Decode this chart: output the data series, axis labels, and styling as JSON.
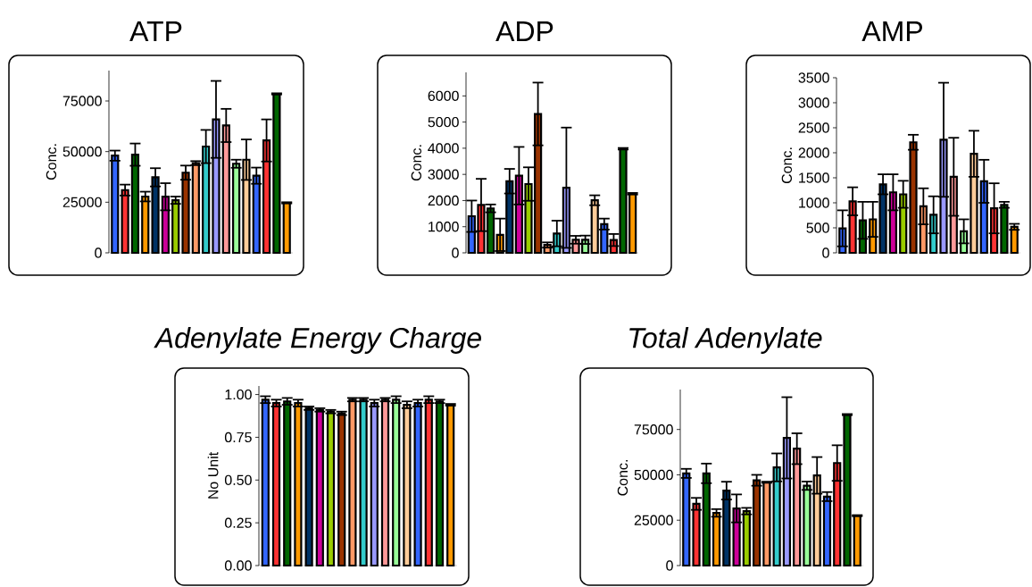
{
  "chart_data": [
    {
      "type": "bar",
      "title": "ATP",
      "ylabel": "Conc.",
      "tick_labels": "y",
      "categories": [
        null,
        null,
        null,
        null,
        null,
        null,
        null,
        null,
        null,
        null,
        null,
        null,
        null,
        null,
        null,
        null,
        null,
        null
      ],
      "colors": [
        "#3366ff",
        "#ff3333",
        "#006600",
        "#ff9900",
        "#003366",
        "#cc0099",
        "#99cc00",
        "#993300",
        "#ff9966",
        "#33cccc",
        "#9999ff",
        "#ff9999",
        "#99ff99",
        "#ffcc99",
        "#3366ff",
        "#ff3333",
        "#006600",
        "#ff9900"
      ],
      "values": [
        48000,
        31000,
        48500,
        27800,
        37300,
        27700,
        26000,
        39600,
        44300,
        52500,
        65900,
        62900,
        44000,
        46000,
        38100,
        55500,
        78500,
        24700
      ],
      "errors": [
        2500,
        2700,
        5500,
        2400,
        4500,
        6700,
        1800,
        3500,
        1000,
        8200,
        19000,
        8200,
        2000,
        10000,
        4000,
        10400,
        300,
        300
      ],
      "ylim": [
        0,
        90000
      ],
      "yticks": [
        0,
        25000,
        50000,
        75000
      ]
    },
    {
      "type": "bar",
      "title": "ADP",
      "ylabel": "Conc.",
      "tick_labels": "y",
      "categories": [
        null,
        null,
        null,
        null,
        null,
        null,
        null,
        null,
        null,
        null,
        null,
        null,
        null,
        null,
        null,
        null,
        null,
        null
      ],
      "colors": [
        "#3366ff",
        "#ff3333",
        "#006600",
        "#ff9900",
        "#003366",
        "#cc0099",
        "#99cc00",
        "#993300",
        "#ff9966",
        "#33cccc",
        "#9999ff",
        "#ff9999",
        "#99ff99",
        "#ffcc99",
        "#3366ff",
        "#ff3333",
        "#006600",
        "#ff9900"
      ],
      "values": [
        1400,
        1830,
        1700,
        690,
        2740,
        2950,
        2630,
        5310,
        300,
        740,
        2490,
        500,
        500,
        2010,
        1100,
        490,
        3980,
        2260
      ],
      "errors": [
        600,
        1000,
        150,
        620,
        470,
        1100,
        640,
        1200,
        100,
        490,
        2300,
        150,
        160,
        190,
        210,
        230,
        30,
        30
      ],
      "ylim": [
        0,
        6900
      ],
      "yticks": [
        0,
        1000,
        2000,
        3000,
        4000,
        5000,
        6000
      ]
    },
    {
      "type": "bar",
      "title": "AMP",
      "ylabel": "Conc.",
      "tick_labels": "y",
      "categories": [
        null,
        null,
        null,
        null,
        null,
        null,
        null,
        null,
        null,
        null,
        null,
        null,
        null,
        null,
        null,
        null,
        null,
        null
      ],
      "colors": [
        "#3366ff",
        "#ff3333",
        "#006600",
        "#ff9900",
        "#003366",
        "#cc0099",
        "#99cc00",
        "#993300",
        "#ff9966",
        "#33cccc",
        "#9999ff",
        "#ff9999",
        "#99ff99",
        "#ffcc99",
        "#3366ff",
        "#ff3333",
        "#006600",
        "#ff9900"
      ],
      "values": [
        490,
        1030,
        650,
        670,
        1370,
        1210,
        1170,
        2210,
        930,
        760,
        2260,
        1520,
        430,
        1980,
        1430,
        890,
        960,
        520
      ],
      "errors": [
        360,
        280,
        370,
        350,
        200,
        360,
        270,
        150,
        360,
        370,
        1140,
        780,
        240,
        460,
        430,
        500,
        60,
        60
      ],
      "ylim": [
        0,
        3500
      ],
      "yticks": [
        0,
        500,
        1000,
        1500,
        2000,
        2500,
        3000,
        3500
      ]
    },
    {
      "type": "bar",
      "title": "Adenylate Energy Charge",
      "ylabel": "No Unit",
      "tick_labels": "y",
      "categories": [
        null,
        null,
        null,
        null,
        null,
        null,
        null,
        null,
        null,
        null,
        null,
        null,
        null,
        null,
        null,
        null,
        null,
        null
      ],
      "colors": [
        "#3366ff",
        "#ff3333",
        "#006600",
        "#ff9900",
        "#003366",
        "#cc0099",
        "#99cc00",
        "#993300",
        "#ff9966",
        "#33cccc",
        "#9999ff",
        "#ff9999",
        "#99ff99",
        "#ffcc99",
        "#3366ff",
        "#ff3333",
        "#006600",
        "#ff9900"
      ],
      "values": [
        0.97,
        0.95,
        0.96,
        0.95,
        0.92,
        0.91,
        0.9,
        0.89,
        0.97,
        0.97,
        0.95,
        0.97,
        0.97,
        0.94,
        0.95,
        0.97,
        0.96,
        0.94
      ],
      "errors": [
        0.02,
        0.02,
        0.02,
        0.02,
        0.01,
        0.01,
        0.01,
        0.01,
        0.01,
        0.01,
        0.02,
        0.01,
        0.02,
        0.02,
        0.02,
        0.02,
        0.01,
        0.005
      ],
      "ylim": [
        0,
        1.05
      ],
      "yticks": [
        {
          "value": 0,
          "label": "0.00"
        },
        {
          "value": 0.25,
          "label": "0.25"
        },
        {
          "value": 0.5,
          "label": "0.50"
        },
        {
          "value": 0.75,
          "label": "0.75"
        },
        {
          "value": 1,
          "label": "1.00"
        }
      ]
    },
    {
      "type": "bar",
      "title": "Total Adenylate",
      "ylabel": "Conc.",
      "tick_labels": "y",
      "categories": [
        null,
        null,
        null,
        null,
        null,
        null,
        null,
        null,
        null,
        null,
        null,
        null,
        null,
        null,
        null,
        null,
        null,
        null
      ],
      "colors": [
        "#3366ff",
        "#ff3333",
        "#006600",
        "#ff9900",
        "#003366",
        "#cc0099",
        "#99cc00",
        "#993300",
        "#ff9966",
        "#33cccc",
        "#9999ff",
        "#ff9999",
        "#99ff99",
        "#ffcc99",
        "#3366ff",
        "#ff3333",
        "#006600",
        "#ff9900"
      ],
      "values": [
        50800,
        34000,
        50800,
        29000,
        41300,
        31500,
        30000,
        47000,
        45900,
        54100,
        70400,
        64400,
        44000,
        49700,
        38000,
        56500,
        83200,
        27500
      ],
      "errors": [
        2500,
        3300,
        5400,
        2100,
        4900,
        7700,
        1800,
        3000,
        300,
        7700,
        22400,
        8500,
        2300,
        10100,
        2500,
        9800,
        300,
        300
      ],
      "ylim": [
        0,
        97000
      ],
      "yticks": [
        0,
        25000,
        50000,
        75000
      ]
    }
  ]
}
